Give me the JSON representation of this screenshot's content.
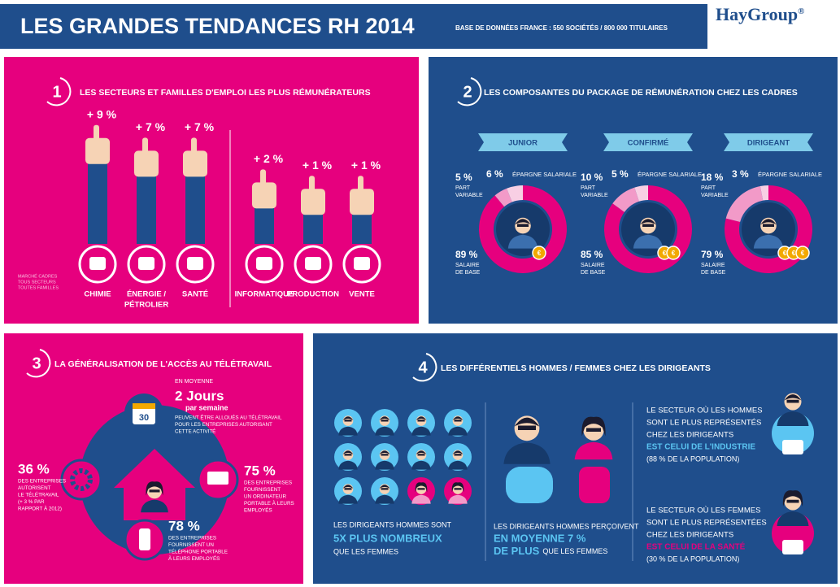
{
  "header": {
    "title": "LES GRANDES TENDANCES RH 2014",
    "subtitle": "BASE DE DONNÉES FRANCE : 550 SOCIÉTÉS / 800 000 TITULAIRES",
    "logo": "HayGroup",
    "logo_mark": "®"
  },
  "section1": {
    "number": "1",
    "title": "LES SECTEURS ET FAMILLES D'EMPLOI LES PLUS RÉMUNÉRATEURS",
    "note": [
      "MARCHÉ CADRES",
      "TOUS SECTEURS",
      "TOUTES FAMILLES"
    ],
    "items": [
      {
        "value": 9,
        "label": "+ 9 %",
        "name": [
          "CHIMIE"
        ]
      },
      {
        "value": 7,
        "label": "+ 7 %",
        "name": [
          "ÉNERGIE /",
          "PÉTROLIER"
        ]
      },
      {
        "value": 7,
        "label": "+ 7 %",
        "name": [
          "SANTÉ"
        ]
      },
      {
        "value": 2,
        "label": "+ 2 %",
        "name": [
          "INFORMATIQUE"
        ]
      },
      {
        "value": 1,
        "label": "+ 1 %",
        "name": [
          "PRODUCTION"
        ]
      },
      {
        "value": 1,
        "label": "+ 1 %",
        "name": [
          "VENTE"
        ]
      }
    ]
  },
  "section2": {
    "number": "2",
    "title": "LES COMPOSANTES DU PACKAGE DE RÉMUNÉRATION CHEZ LES CADRES",
    "currency": "€",
    "profiles": [
      {
        "level": "JUNIOR",
        "coins": 1,
        "base": {
          "value": 89,
          "label": "89 %",
          "text": [
            "SALAIRE",
            "DE BASE"
          ]
        },
        "variable": {
          "value": 5,
          "label": "5 %",
          "text": [
            "PART",
            "VARIABLE"
          ]
        },
        "savings": {
          "value": 6,
          "label": "6 %",
          "text": "ÉPARGNE SALARIALE"
        }
      },
      {
        "level": "CONFIRMÉ",
        "coins": 2,
        "base": {
          "value": 85,
          "label": "85 %",
          "text": [
            "SALAIRE",
            "DE BASE"
          ]
        },
        "variable": {
          "value": 10,
          "label": "10 %",
          "text": [
            "PART",
            "VARIABLE"
          ]
        },
        "savings": {
          "value": 5,
          "label": "5 %",
          "text": "ÉPARGNE SALARIALE"
        }
      },
      {
        "level": "DIRIGEANT",
        "coins": 3,
        "base": {
          "value": 79,
          "label": "79 %",
          "text": [
            "SALAIRE",
            "DE BASE"
          ]
        },
        "variable": {
          "value": 18,
          "label": "18 %",
          "text": [
            "PART",
            "VARIABLE"
          ]
        },
        "savings": {
          "value": 3,
          "label": "3 %",
          "text": "ÉPARGNE SALARIALE"
        }
      }
    ]
  },
  "section3": {
    "number": "3",
    "title": "LA GÉNÉRALISATION DE L'ACCÈS AU TÉLÉTRAVAIL",
    "calendar": "30",
    "days": {
      "intro": "EN MOYENNE",
      "big": "2 Jours",
      "sub": "par semaine",
      "text": [
        "PEUVENT ÊTRE ALLOUÉS AU TÉLÉTRAVAIL",
        "POUR LES ENTREPRISES AUTORISANT",
        "CETTE ACTIVITÉ"
      ]
    },
    "stats": [
      {
        "value": "36 %",
        "text": [
          "DES ENTREPRISES",
          "AUTORISENT",
          "LE TÉLÉTRAVAIL",
          "(+ 3 % PAR",
          "RAPPORT À 2012)"
        ]
      },
      {
        "value": "75 %",
        "text": [
          "DES ENTREPRISES",
          "FOURNISSENT",
          "UN ORDINATEUR",
          "PORTABLE À LEURS",
          "EMPLOYÉS"
        ]
      },
      {
        "value": "78 %",
        "text": [
          "DES ENTREPRISES",
          "FOURNISSENT UN",
          "TÉLÉPHONE PORTABLE",
          "À LEURS EMPLOYÉS"
        ]
      }
    ]
  },
  "section4": {
    "number": "4",
    "title": "LES DIFFÉRENTIELS HOMMES / FEMMES CHEZ LES DIRIGEANTS",
    "ratio": {
      "pre": "LES DIRIGEANTS HOMMES SONT",
      "highlight": "5X PLUS NOMBREUX",
      "post": "QUE LES FEMMES"
    },
    "pay": {
      "pre": "LES DIRIGEANTS HOMMES PERÇOIVENT",
      "highlight": [
        "EN MOYENNE 7 %",
        "DE PLUS"
      ],
      "post": "QUE LES FEMMES"
    },
    "sectors": [
      {
        "lines": [
          "LE SECTEUR OÙ LES HOMMES",
          "SONT LE PLUS REPRÉSENTÉS",
          "CHEZ LES DIRIGEANTS"
        ],
        "highlight": "EST CELUI DE L'INDUSTRIE",
        "note": "(88 % DE LA POPULATION)"
      },
      {
        "lines": [
          "LE SECTEUR OÙ LES FEMMES",
          "SONT LE PLUS REPRÉSENTÉES",
          "CHEZ LES DIRIGEANTS"
        ],
        "highlight": "EST CELUI DE LA SANTÉ",
        "note": "(30 % DE LA POPULATION)"
      }
    ]
  }
}
